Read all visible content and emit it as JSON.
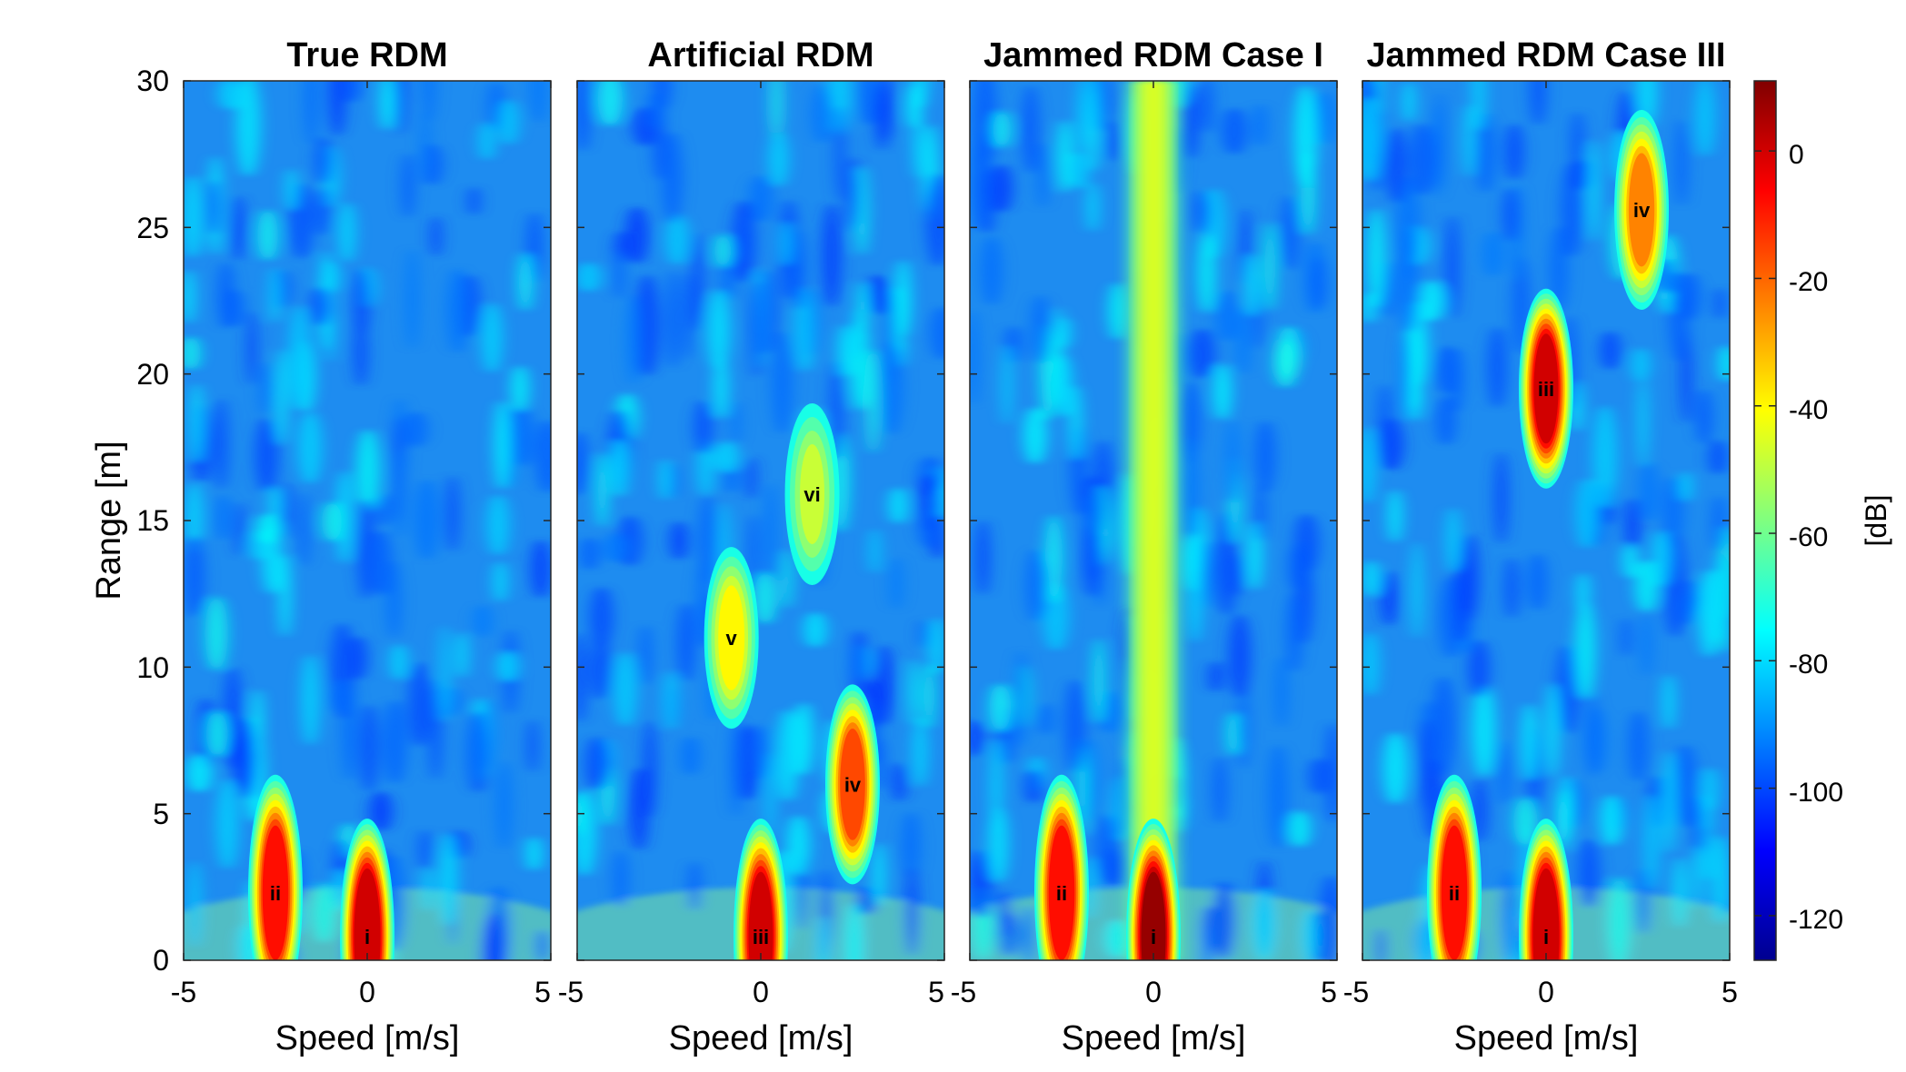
{
  "chart_data": [
    {
      "type": "heatmap",
      "title": "True RDM",
      "xlabel": "Speed [m/s]",
      "ylabel": "Range [m]",
      "xlim": [
        -5,
        5
      ],
      "ylim": [
        0,
        30
      ],
      "xticks": [
        -5,
        0,
        5
      ],
      "yticks": [
        0,
        5,
        10,
        15,
        20,
        25,
        30
      ],
      "targets": [
        {
          "label": "i",
          "speed": 0,
          "range": 0.8,
          "peak_db": 5
        },
        {
          "label": "ii",
          "speed": -2.5,
          "range": 2.3,
          "peak_db": -5
        }
      ]
    },
    {
      "type": "heatmap",
      "title": "Artificial RDM",
      "xlabel": "Speed [m/s]",
      "xlim": [
        -5,
        5
      ],
      "ylim": [
        0,
        30
      ],
      "xticks": [
        -5,
        0,
        5
      ],
      "targets": [
        {
          "label": "iii",
          "speed": 0,
          "range": 0.8,
          "peak_db": 0
        },
        {
          "label": "iv",
          "speed": 2.5,
          "range": 6,
          "peak_db": -15
        },
        {
          "label": "v",
          "speed": -0.8,
          "range": 11,
          "peak_db": -38
        },
        {
          "label": "vi",
          "speed": 1.4,
          "range": 15.9,
          "peak_db": -48
        }
      ]
    },
    {
      "type": "heatmap",
      "title": "Jammed RDM Case I",
      "xlabel": "Speed [m/s]",
      "xlim": [
        -5,
        5
      ],
      "ylim": [
        0,
        30
      ],
      "xticks": [
        -5,
        0,
        5
      ],
      "targets": [
        {
          "label": "i",
          "speed": 0,
          "range": 0.8,
          "peak_db": 8
        },
        {
          "label": "ii",
          "speed": -2.5,
          "range": 2.3,
          "peak_db": -5
        }
      ]
    },
    {
      "type": "heatmap",
      "title": "Jammed RDM Case III",
      "xlabel": "Speed [m/s]",
      "xlim": [
        -5,
        5
      ],
      "ylim": [
        0,
        30
      ],
      "xticks": [
        -5,
        0,
        5
      ],
      "targets": [
        {
          "label": "i",
          "speed": 0,
          "range": 0.8,
          "peak_db": 5
        },
        {
          "label": "ii",
          "speed": -2.5,
          "range": 2.3,
          "peak_db": -5
        },
        {
          "label": "iii",
          "speed": 0,
          "range": 19.5,
          "peak_db": 0
        },
        {
          "label": "iv",
          "speed": 2.6,
          "range": 25.6,
          "peak_db": -22
        }
      ]
    }
  ],
  "colorbar": {
    "label": "[dB]",
    "min": -127,
    "max": 11,
    "ticks": [
      0,
      -20,
      -40,
      -60,
      -80,
      -100,
      -120
    ],
    "colormap": "jet"
  }
}
